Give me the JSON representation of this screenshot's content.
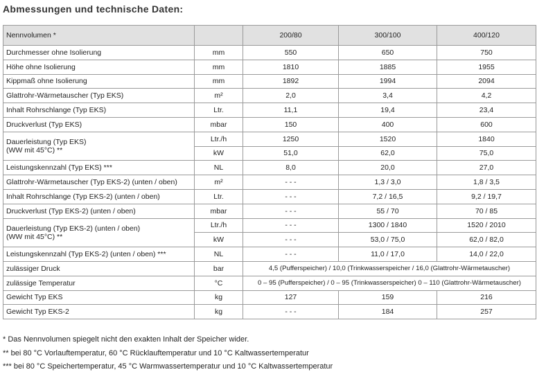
{
  "header": {
    "title": "Abmessungen und technische Daten:"
  },
  "table": {
    "columns": [
      "Nennvolumen *",
      "200/80",
      "300/100",
      "400/120"
    ],
    "rows": [
      {
        "label": "Durchmesser ohne Isolierung",
        "unit": "mm",
        "values": [
          "550",
          "650",
          "750"
        ]
      },
      {
        "label": "Höhe ohne Isolierung",
        "unit": "mm",
        "values": [
          "1810",
          "1885",
          "1955"
        ]
      },
      {
        "label": "Kippmaß ohne Isolierung",
        "unit": "mm",
        "values": [
          "1892",
          "1994",
          "2094"
        ]
      },
      {
        "label": "Glattrohr-Wärmetauscher (Typ EKS)",
        "unit": "m²",
        "values": [
          "2,0",
          "3,4",
          "4,2"
        ]
      },
      {
        "label": "Inhalt Rohrschlange (Typ EKS)",
        "unit": "Ltr.",
        "values": [
          "11,1",
          "19,4",
          "23,4"
        ]
      },
      {
        "label": "Druckverlust (Typ EKS)",
        "unit": "mbar",
        "values": [
          "150",
          "400",
          "600"
        ]
      },
      {
        "label": [
          "Dauerleistung (Typ EKS)",
          "(WW mit 45°C) **"
        ],
        "sub": [
          {
            "unit": "Ltr./h",
            "values": [
              "1250",
              "1520",
              "1840"
            ]
          },
          {
            "unit": "kW",
            "values": [
              "51,0",
              "62,0",
              "75,0"
            ]
          }
        ]
      },
      {
        "label": "Leistungskennzahl (Typ EKS) ***",
        "unit": "NL",
        "values": [
          "8,0",
          "20,0",
          "27,0"
        ]
      },
      {
        "label": "Glattrohr-Wärmetauscher (Typ EKS-2) (unten / oben)",
        "unit": "m²",
        "values": [
          "- - -",
          "1,3 / 3,0",
          "1,8 / 3,5"
        ]
      },
      {
        "label": "Inhalt Rohrschlange (Typ EKS-2) (unten / oben)",
        "unit": "Ltr.",
        "values": [
          "- - -",
          "7,2 / 16,5",
          "9,2 / 19,7"
        ]
      },
      {
        "label": "Druckverlust (Typ EKS-2) (unten / oben)",
        "unit": "mbar",
        "values": [
          "- - -",
          "55 / 70",
          "70 / 85"
        ]
      },
      {
        "label": [
          "Dauerleistung (Typ EKS-2) (unten / oben)",
          "(WW mit 45°C) **"
        ],
        "sub": [
          {
            "unit": "Ltr./h",
            "values": [
              "- - -",
              "1300 / 1840",
              "1520 / 2010"
            ]
          },
          {
            "unit": "kW",
            "values": [
              "- - -",
              "53,0 / 75,0",
              "62,0 / 82,0"
            ]
          }
        ]
      },
      {
        "label": "Leistungskennzahl (Typ EKS-2) (unten / oben) ***",
        "unit": "NL",
        "values": [
          "- - -",
          "11,0 / 17,0",
          "14,0 / 22,0"
        ]
      },
      {
        "label": "zulässiger Druck",
        "unit": "bar",
        "span": "4,5 (Pufferspeicher) / 10,0 (Trinkwasserspeicher / 16,0 (Glattrohr-Wärmetauscher)"
      },
      {
        "label": "zulässige Temperatur",
        "unit": "°C",
        "span": "0 – 95 (Pufferspeicher) / 0 – 95 (Trinkwasserspeicher) 0 – 110 (Glattrohr-Wärmetauscher)"
      },
      {
        "label": "Gewicht Typ EKS",
        "unit": "kg",
        "values": [
          "127",
          "159",
          "216"
        ]
      },
      {
        "label": "Gewicht Typ EKS-2",
        "unit": "kg",
        "values": [
          "- - -",
          "184",
          "257"
        ]
      }
    ]
  },
  "footnotes": [
    "* Das Nennvolumen spiegelt nicht den exakten Inhalt der Speicher wider.",
    "**  bei 80 °C Vorlauftemperatur, 60 °C Rücklauftemperatur und 10 °C Kaltwassertemperatur",
    "*** bei 80 °C Speichertemperatur, 45 °C Warmwassertemperatur und 10 °C Kaltwassertemperatur"
  ]
}
